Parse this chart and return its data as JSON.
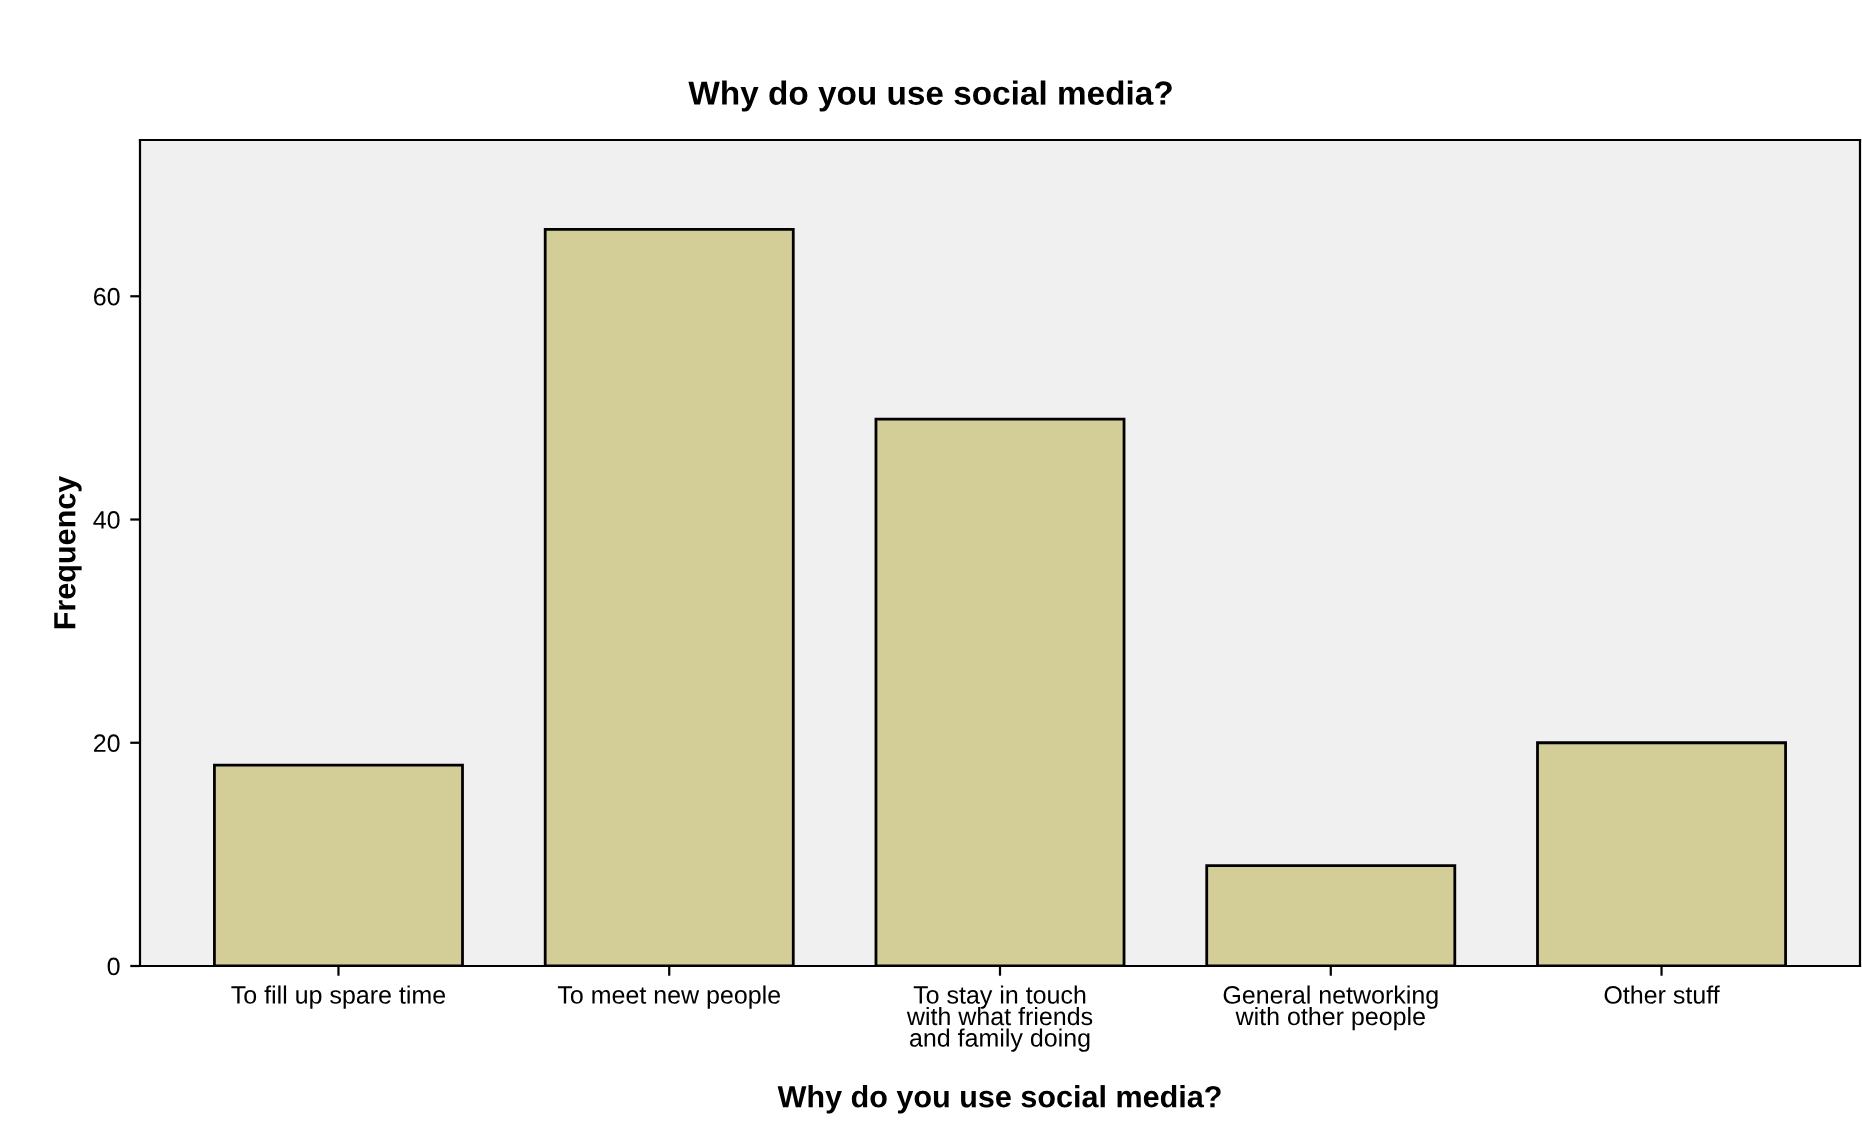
{
  "chart_data": {
    "type": "bar",
    "title": "Why do you use social media?",
    "xlabel": "Why do you use social media?",
    "ylabel": "Frequency",
    "categories": [
      "To fill up spare time",
      "To meet new people",
      "To stay in touch\nwith what friends\nand family doing",
      "General networking\nwith other people",
      "Other stuff"
    ],
    "values": [
      18,
      66,
      49,
      9,
      20
    ],
    "color": "#d3cd98",
    "ylim": [
      0,
      74
    ],
    "yticks": [
      0,
      20,
      40,
      60
    ],
    "grid": false,
    "legend": false
  }
}
